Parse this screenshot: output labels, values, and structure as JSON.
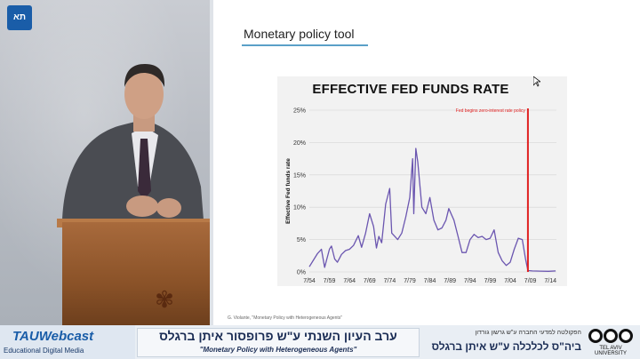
{
  "slide": {
    "title": "Monetary policy tool",
    "citation": "G. Violante, \"Monetary Policy with Heterogeneous Agents\""
  },
  "chart_data": {
    "type": "line",
    "title": "EFFECTIVE FED FUNDS RATE",
    "ylabel": "Effective Fed funds rate",
    "xlabel": "",
    "x_ticks": [
      "7/54",
      "7/59",
      "7/64",
      "7/69",
      "7/74",
      "7/79",
      "7/84",
      "7/89",
      "7/94",
      "7/99",
      "7/04",
      "7/09",
      "7/14"
    ],
    "y_ticks": [
      "0%",
      "5%",
      "10%",
      "15%",
      "20%",
      "25%"
    ],
    "ylim": [
      0,
      25
    ],
    "xlim": [
      1954.5,
      2016
    ],
    "annotation": "Fed begins zero-interest rate policy",
    "annotation_x": 2008.9,
    "grid": true,
    "series": [
      {
        "color": "#6b56b0",
        "points": [
          [
            1954.5,
            0.8
          ],
          [
            1955.5,
            1.8
          ],
          [
            1956.5,
            2.8
          ],
          [
            1957.5,
            3.5
          ],
          [
            1958.3,
            0.7
          ],
          [
            1959.5,
            3.5
          ],
          [
            1960.0,
            4.0
          ],
          [
            1960.8,
            2.0
          ],
          [
            1961.5,
            1.5
          ],
          [
            1962.5,
            2.7
          ],
          [
            1963.5,
            3.3
          ],
          [
            1964.5,
            3.5
          ],
          [
            1965.5,
            4.1
          ],
          [
            1966.7,
            5.6
          ],
          [
            1967.5,
            3.8
          ],
          [
            1968.5,
            6.0
          ],
          [
            1969.5,
            9.0
          ],
          [
            1970.5,
            7.0
          ],
          [
            1971.2,
            3.7
          ],
          [
            1971.8,
            5.5
          ],
          [
            1972.5,
            4.5
          ],
          [
            1973.5,
            10.5
          ],
          [
            1974.5,
            12.9
          ],
          [
            1975.0,
            6.0
          ],
          [
            1976.5,
            5.0
          ],
          [
            1977.5,
            6.0
          ],
          [
            1978.5,
            8.5
          ],
          [
            1979.5,
            11.5
          ],
          [
            1980.2,
            17.5
          ],
          [
            1980.5,
            9.0
          ],
          [
            1981.0,
            19.1
          ],
          [
            1981.5,
            17.0
          ],
          [
            1982.0,
            13.5
          ],
          [
            1982.5,
            10.0
          ],
          [
            1983.5,
            9.0
          ],
          [
            1984.5,
            11.5
          ],
          [
            1985.5,
            8.0
          ],
          [
            1986.5,
            6.5
          ],
          [
            1987.5,
            6.8
          ],
          [
            1988.5,
            8.0
          ],
          [
            1989.2,
            9.8
          ],
          [
            1990.5,
            8.0
          ],
          [
            1991.5,
            5.5
          ],
          [
            1992.5,
            3.0
          ],
          [
            1993.5,
            3.0
          ],
          [
            1994.5,
            5.0
          ],
          [
            1995.5,
            5.8
          ],
          [
            1996.5,
            5.3
          ],
          [
            1997.5,
            5.5
          ],
          [
            1998.5,
            5.0
          ],
          [
            1999.5,
            5.2
          ],
          [
            2000.5,
            6.5
          ],
          [
            2001.5,
            3.0
          ],
          [
            2002.5,
            1.7
          ],
          [
            2003.5,
            1.0
          ],
          [
            2004.5,
            1.5
          ],
          [
            2005.5,
            3.5
          ],
          [
            2006.5,
            5.2
          ],
          [
            2007.5,
            5.0
          ],
          [
            2008.3,
            2.0
          ],
          [
            2008.9,
            0.2
          ],
          [
            2010.0,
            0.15
          ],
          [
            2012.0,
            0.12
          ],
          [
            2014.0,
            0.1
          ],
          [
            2015.8,
            0.15
          ]
        ]
      }
    ]
  },
  "header": {
    "logo_text": "תא"
  },
  "footer": {
    "webcast_title": "TAUWebcast",
    "webcast_subtitle": "Educational Digital Media",
    "hebrew_title": "ערב העיון השנתי ע\"ש פרופסור איתן ברגלס",
    "english_subtitle": "\"Monetary Policy with Heterogeneous Agents\"",
    "faculty": "הפקולטה למדעי החברה ע\"ש גרשון גורדון",
    "school": "ביה\"ס לכלכלה ע\"ש איתן ברגלס",
    "university_label": "TEL AVIV UNIVERSITY"
  }
}
